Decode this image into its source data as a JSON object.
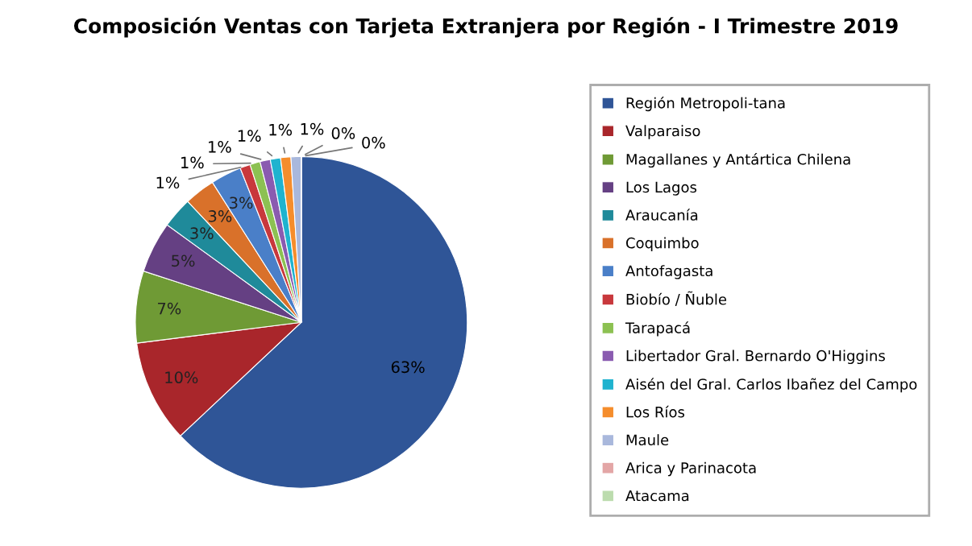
{
  "chart_data": {
    "type": "pie",
    "title": "Composición Ventas con Tarjeta Extranjera por Región - I Trimestre 2019",
    "categories": [
      "Región Metropoli-tana",
      "Valparaiso",
      "Magallanes y Antártica Chilena",
      "Los Lagos",
      "Araucanía",
      "Coquimbo",
      "Antofagasta",
      "Biobío / Ñuble",
      "Tarapacá",
      "Libertador Gral. Bernardo O'Higgins",
      "Aisén del Gral. Carlos Ibañez del Campo",
      "Los Ríos",
      "Maule",
      "Arica y Parinacota",
      "Atacama"
    ],
    "values": [
      63,
      10,
      7,
      5,
      3,
      3,
      3,
      1,
      1,
      1,
      1,
      1,
      1,
      0,
      0
    ],
    "colors": [
      "#2f5597",
      "#a9262b",
      "#6f9a35",
      "#654083",
      "#1f8a9a",
      "#d9712a",
      "#4a7fc8",
      "#c8383c",
      "#8cc152",
      "#8a5bb0",
      "#1fb3cf",
      "#f58d2c",
      "#a9b8dc",
      "#e3a6a6",
      "#bcdcae"
    ],
    "value_labels": [
      "63%",
      "10%",
      "7%",
      "5%",
      "3%",
      "3%",
      "3%",
      "1%",
      "1%",
      "1%",
      "1%",
      "1%",
      "1%",
      "0%",
      "0%"
    ],
    "legend": "right"
  }
}
